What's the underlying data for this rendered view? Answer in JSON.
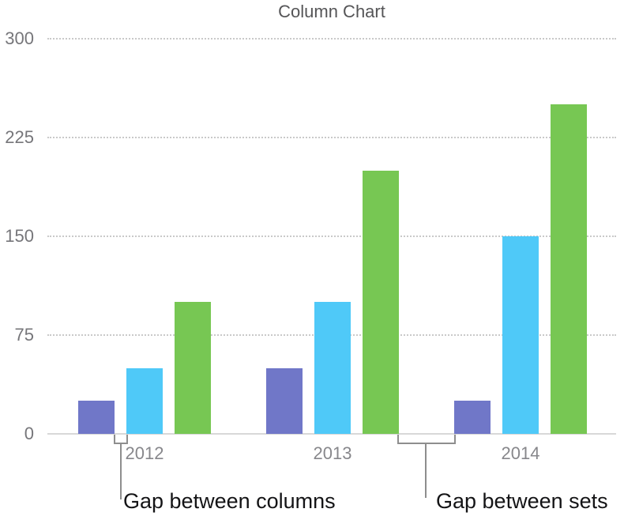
{
  "chart_data": {
    "type": "bar",
    "title": "Column Chart",
    "categories": [
      "2012",
      "2013",
      "2014"
    ],
    "series": [
      {
        "name": "purple",
        "color": "#7077C8",
        "values": [
          25,
          50,
          25
        ]
      },
      {
        "name": "blue",
        "color": "#4FC9F8",
        "values": [
          50,
          100,
          150
        ]
      },
      {
        "name": "green",
        "color": "#77C753",
        "values": [
          100,
          200,
          250
        ]
      }
    ],
    "y_ticks": [
      0,
      75,
      150,
      225,
      300
    ],
    "ylim": [
      0,
      300
    ],
    "xlabel": "",
    "ylabel": "",
    "grid": "horizontal-dotted",
    "legend": "none"
  },
  "annotations": {
    "gap_between_columns": "Gap between columns",
    "gap_between_sets": "Gap between sets"
  },
  "colors": {
    "series_purple": "#7077C8",
    "series_blue": "#4FC9F8",
    "series_green": "#77C753",
    "gridline": "#C9C9C9",
    "axis_line": "#D8D8D8",
    "bracket": "#8E8E8E",
    "title_text": "#555557",
    "axis_text": "#76767A",
    "category_text": "#87878B",
    "annotation_text": "#141416"
  }
}
